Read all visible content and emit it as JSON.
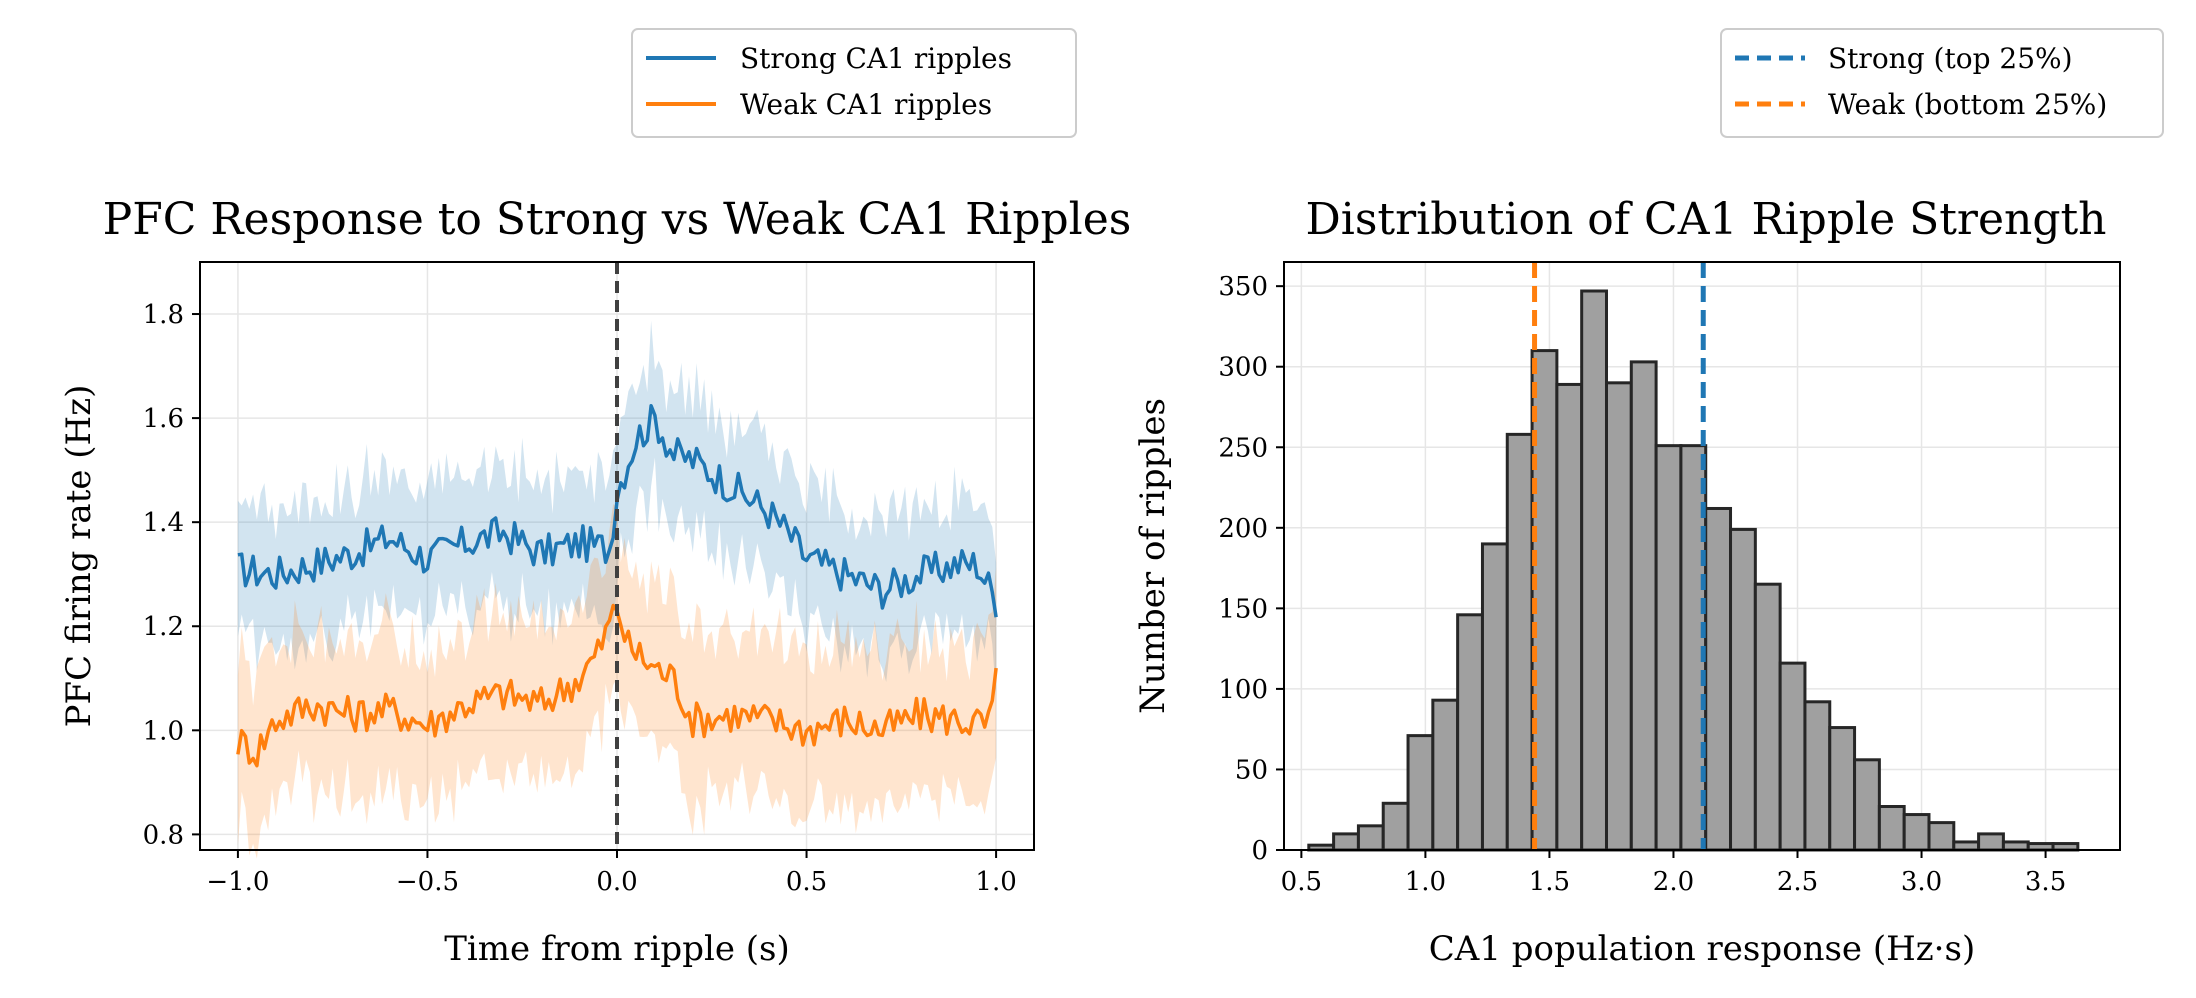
{
  "chart_data": [
    {
      "type": "line",
      "title": "PFC Response to Strong vs Weak CA1 Ripples",
      "xlabel": "Time from ripple (s)",
      "ylabel": "PFC firing rate (Hz)",
      "xlim": [
        -1.1,
        1.1
      ],
      "ylim": [
        0.77,
        1.9
      ],
      "xticks": [
        -1.0,
        -0.5,
        0.0,
        0.5,
        1.0
      ],
      "xtick_labels": [
        "−1.0",
        "−0.5",
        "0.0",
        "0.5",
        "1.0"
      ],
      "yticks": [
        0.8,
        1.0,
        1.2,
        1.4,
        1.6,
        1.8
      ],
      "ytick_labels": [
        "0.8",
        "1.0",
        "1.2",
        "1.4",
        "1.6",
        "1.8"
      ],
      "vline": 0.0,
      "band_halfwidth": [
        0.13,
        0.15
      ],
      "legend": [
        "Strong CA1 ripples",
        "Weak CA1 ripples"
      ],
      "series": [
        {
          "name": "Strong CA1 ripples",
          "color": "#1f77b4",
          "x": [
            -1.0,
            -0.9,
            -0.8,
            -0.7,
            -0.6,
            -0.5,
            -0.4,
            -0.3,
            -0.2,
            -0.1,
            -0.02,
            0.0,
            0.05,
            0.1,
            0.15,
            0.2,
            0.3,
            0.4,
            0.45,
            0.5,
            0.6,
            0.7,
            0.8,
            0.9,
            0.95,
            1.0
          ],
          "y": [
            1.31,
            1.3,
            1.32,
            1.34,
            1.37,
            1.33,
            1.36,
            1.38,
            1.34,
            1.36,
            1.35,
            1.46,
            1.56,
            1.6,
            1.53,
            1.52,
            1.47,
            1.42,
            1.38,
            1.33,
            1.3,
            1.27,
            1.3,
            1.32,
            1.32,
            1.25
          ]
        },
        {
          "name": "Weak CA1 ripples",
          "color": "#ff7f0e",
          "x": [
            -1.0,
            -0.95,
            -0.9,
            -0.8,
            -0.7,
            -0.6,
            -0.5,
            -0.4,
            -0.3,
            -0.2,
            -0.1,
            -0.05,
            0.0,
            0.03,
            0.1,
            0.15,
            0.2,
            0.3,
            0.4,
            0.5,
            0.6,
            0.7,
            0.8,
            0.9,
            0.98,
            1.0
          ],
          "y": [
            0.98,
            0.96,
            1.02,
            1.05,
            1.03,
            1.04,
            1.01,
            1.05,
            1.07,
            1.05,
            1.1,
            1.15,
            1.24,
            1.16,
            1.12,
            1.1,
            1.02,
            1.03,
            1.02,
            1.0,
            1.02,
            1.0,
            1.03,
            1.02,
            1.01,
            1.09
          ]
        }
      ]
    },
    {
      "type": "bar",
      "title": "Distribution of CA1 Ripple Strength",
      "xlabel": "CA1 population response (Hz·s)",
      "ylabel": "Number of ripples",
      "xlim": [
        0.43,
        3.8
      ],
      "ylim": [
        0,
        365
      ],
      "xticks": [
        0.5,
        1.0,
        1.5,
        2.0,
        2.5,
        3.0,
        3.5
      ],
      "xtick_labels": [
        "0.5",
        "1.0",
        "1.5",
        "2.0",
        "2.5",
        "3.0",
        "3.5"
      ],
      "yticks": [
        0,
        50,
        100,
        150,
        200,
        250,
        300,
        350
      ],
      "ytick_labels": [
        "0",
        "50",
        "100",
        "150",
        "200",
        "250",
        "300",
        "350"
      ],
      "bin_start": 0.53,
      "bin_width": 0.1,
      "values": [
        3,
        10,
        15,
        29,
        71,
        93,
        146,
        190,
        258,
        310,
        289,
        347,
        290,
        303,
        251,
        251,
        212,
        199,
        165,
        116,
        92,
        76,
        56,
        27,
        22,
        17,
        5,
        10,
        5,
        4,
        4
      ],
      "bar_color": "#a0a0a0",
      "edge_color": "#262626",
      "vlines": [
        {
          "x": 1.44,
          "color": "#ff7f0e",
          "label": "Weak (bottom 25%)"
        },
        {
          "x": 2.12,
          "color": "#1f77b4",
          "label": "Strong (top 25%)"
        }
      ],
      "legend": [
        "Strong (top 25%)",
        "Weak (bottom 25%)"
      ]
    }
  ]
}
